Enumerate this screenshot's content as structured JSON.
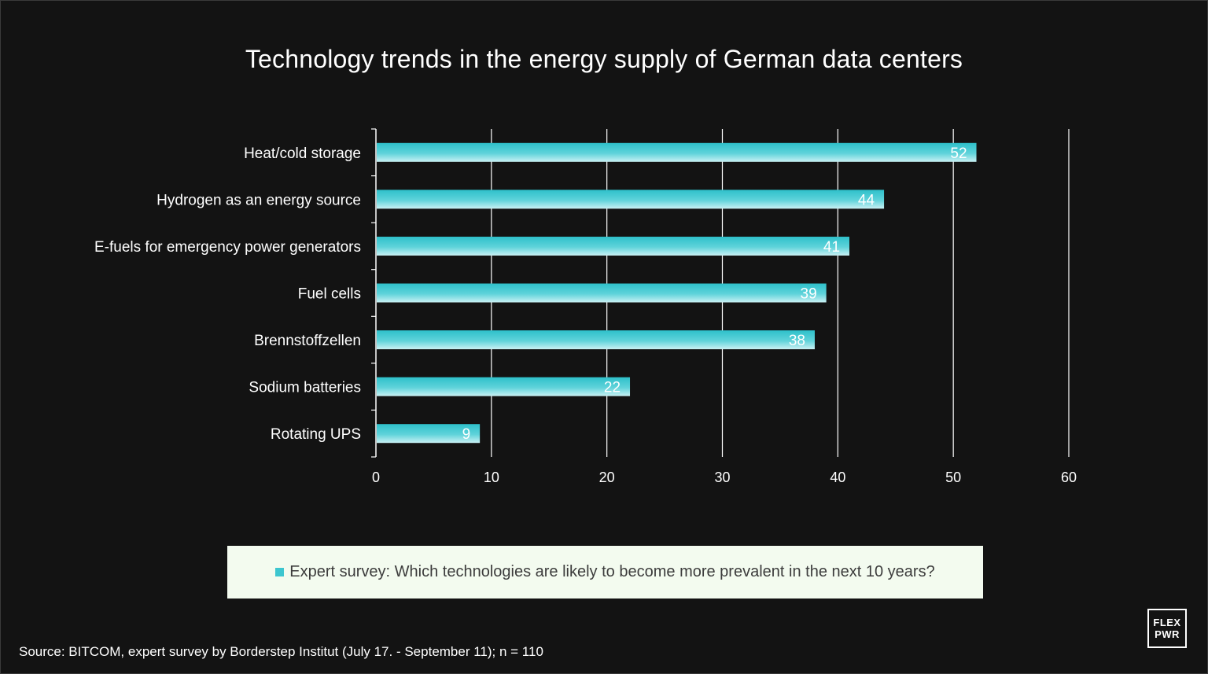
{
  "colors": {
    "background": "#131313",
    "bar": "#3cc6cf",
    "grid": "#ffffff",
    "legend_bg": "#f3fbef"
  },
  "chart_data": {
    "type": "bar",
    "orientation": "horizontal",
    "title": "Technology trends in the energy supply of German data centers",
    "categories": [
      "Heat/cold storage",
      "Hydrogen as an energy source",
      "E-fuels for emergency power generators",
      "Fuel cells",
      "Brennstoffzellen",
      "Sodium batteries",
      "Rotating UPS"
    ],
    "series": [
      {
        "name": "Expert survey: Which technologies are likely to become more prevalent in the next 10 years?",
        "values": [
          52,
          44,
          41,
          39,
          38,
          22,
          9
        ]
      }
    ],
    "xlim": [
      0,
      60
    ],
    "xticks": [
      0,
      10,
      20,
      30,
      40,
      50,
      60
    ],
    "grid": true,
    "legend_position": "bottom",
    "xlabel": "",
    "ylabel": ""
  },
  "source": "Source: BITCOM, expert survey by Borderstep Institut (July 17. - September 11); n = 110",
  "logo": {
    "line1": "FLEX",
    "line2": "PWR"
  }
}
